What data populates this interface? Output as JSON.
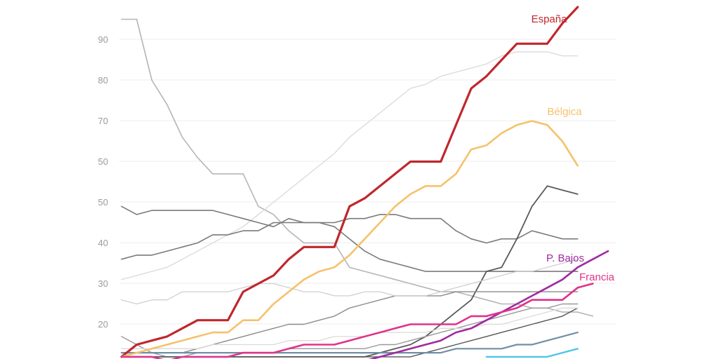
{
  "chart_data": {
    "type": "line",
    "title": "",
    "xlabel": "",
    "ylabel": "",
    "ylim": [
      12,
      99
    ],
    "y_ticks": [
      "20",
      "30",
      "40",
      "50",
      "70",
      "80",
      "90"
    ],
    "grid": true,
    "x_count": 33,
    "series": [
      {
        "name": "España",
        "color": "#c0272d",
        "width": 3.2,
        "labeled": true,
        "values": [
          12,
          15,
          16,
          17,
          19,
          21,
          21,
          21,
          28,
          30,
          32,
          36,
          39,
          39,
          39,
          49,
          51,
          54,
          57,
          60,
          60,
          60,
          69,
          78,
          81,
          85,
          89,
          89,
          89,
          94,
          98
        ]
      },
      {
        "name": "Bélgica",
        "color": "#f5c26b",
        "width": 2.6,
        "labeled": true,
        "values": [
          12,
          13,
          14,
          15,
          16,
          17,
          18,
          18,
          21,
          21,
          25,
          28,
          31,
          33,
          34,
          37,
          41,
          45,
          49,
          52,
          54,
          54,
          57,
          63,
          64,
          67,
          69,
          70,
          69,
          65,
          59
        ]
      },
      {
        "name": "P. Bajos",
        "color": "#a02aa0",
        "width": 2.6,
        "labeled": true,
        "values": [
          null,
          null,
          null,
          null,
          null,
          null,
          null,
          null,
          null,
          null,
          null,
          null,
          null,
          null,
          null,
          null,
          11,
          12,
          13,
          14,
          15,
          16,
          18,
          19,
          21,
          23,
          25,
          27,
          29,
          31,
          34,
          36,
          38
        ]
      },
      {
        "name": "Francia",
        "color": "#e0338a",
        "width": 2.6,
        "labeled": true,
        "values": [
          12,
          12,
          12,
          11,
          12,
          12,
          12,
          12,
          13,
          13,
          13,
          14,
          15,
          15,
          15,
          16,
          17,
          18,
          19,
          20,
          20,
          20,
          20,
          22,
          22,
          23,
          24,
          26,
          26,
          26,
          29,
          30
        ]
      },
      {
        "name": "",
        "color": "#b5b5b5",
        "width": 1.6,
        "labeled": false,
        "values": [
          95,
          95,
          80,
          74,
          66,
          61,
          57,
          57,
          57,
          49,
          47,
          43,
          40,
          40,
          40,
          34,
          33,
          32,
          31,
          30,
          29,
          28,
          28,
          27,
          26,
          25,
          25,
          24,
          24,
          23,
          23,
          22
        ]
      },
      {
        "name": "",
        "color": "#dcdcdc",
        "width": 1.4,
        "labeled": false,
        "values": [
          31,
          32,
          33,
          34,
          36,
          38,
          40,
          42,
          44,
          47,
          50,
          53,
          56,
          59,
          62,
          66,
          69,
          72,
          75,
          78,
          79,
          81,
          82,
          83,
          84,
          86,
          87,
          87,
          87,
          86,
          86
        ]
      },
      {
        "name": "",
        "color": "#7a7a7a",
        "width": 1.6,
        "labeled": false,
        "values": [
          49,
          47,
          48,
          48,
          48,
          48,
          48,
          47,
          46,
          45,
          44,
          46,
          45,
          45,
          45,
          46,
          46,
          47,
          47,
          46,
          46,
          46,
          43,
          41,
          40,
          41,
          41,
          43,
          42,
          41,
          41
        ]
      },
      {
        "name": "",
        "color": "#7a7a7a",
        "width": 1.6,
        "labeled": false,
        "values": [
          36,
          37,
          37,
          38,
          39,
          40,
          42,
          42,
          43,
          43,
          45,
          45,
          45,
          45,
          44,
          41,
          38,
          36,
          35,
          34,
          33,
          33,
          33,
          33,
          33,
          33,
          33,
          33,
          33,
          33,
          33
        ]
      },
      {
        "name": "",
        "color": "#5a5a5a",
        "width": 1.8,
        "labeled": false,
        "values": [
          12,
          12,
          12,
          12,
          12,
          12,
          12,
          12,
          12,
          12,
          12,
          12,
          12,
          12,
          12,
          12,
          12,
          13,
          14,
          15,
          17,
          20,
          23,
          26,
          33,
          34,
          41,
          49,
          54,
          53,
          52
        ]
      },
      {
        "name": "",
        "color": "#8a8a8a",
        "width": 1.4,
        "labeled": false,
        "values": [
          13,
          13,
          13,
          13,
          13,
          14,
          15,
          16,
          17,
          18,
          19,
          20,
          20,
          21,
          22,
          24,
          25,
          26,
          27,
          27,
          27,
          27,
          28,
          28,
          28,
          28,
          28,
          28,
          28,
          28,
          28
        ]
      },
      {
        "name": "",
        "color": "#cfcfcf",
        "width": 1.3,
        "labeled": false,
        "values": [
          26,
          25,
          26,
          26,
          28,
          28,
          28,
          28,
          29,
          30,
          30,
          29,
          28,
          28,
          27,
          27,
          28,
          28,
          27,
          27,
          27,
          28,
          29,
          30,
          31,
          32,
          33,
          33,
          34,
          35,
          36
        ]
      },
      {
        "name": "",
        "color": "#999999",
        "width": 1.4,
        "labeled": false,
        "values": [
          17,
          15,
          13,
          12,
          12,
          13,
          13,
          13,
          13,
          13,
          13,
          14,
          14,
          14,
          14,
          14,
          14,
          15,
          15,
          16,
          17,
          18,
          19,
          20,
          21,
          22,
          23,
          24,
          24,
          25,
          25
        ]
      },
      {
        "name": "",
        "color": "#555555",
        "width": 1.4,
        "labeled": false,
        "values": [
          12,
          12,
          12,
          12,
          12,
          12,
          12,
          12,
          12,
          12,
          12,
          12,
          12,
          12,
          12,
          12,
          12,
          12,
          12,
          12,
          13,
          14,
          15,
          16,
          17,
          18,
          19,
          20,
          21,
          22,
          24
        ]
      },
      {
        "name": "",
        "color": "#dadada",
        "width": 1.3,
        "labeled": false,
        "values": [
          14,
          14,
          14,
          14,
          14,
          14,
          15,
          15,
          15,
          15,
          15,
          16,
          16,
          16,
          17,
          17,
          17,
          18,
          18,
          18,
          18,
          19,
          19,
          19,
          20,
          20,
          21,
          22,
          23,
          24,
          24
        ]
      },
      {
        "name": "",
        "color": "#6f8fa6",
        "width": 2.2,
        "labeled": false,
        "values": [
          13,
          13,
          13,
          13,
          13,
          13,
          13,
          13,
          13,
          13,
          13,
          13,
          13,
          13,
          13,
          13,
          13,
          13,
          13,
          13,
          13,
          13,
          14,
          14,
          14,
          14,
          15,
          15,
          16,
          17,
          18
        ]
      },
      {
        "name": "",
        "color": "#4fc4e8",
        "width": 2.4,
        "labeled": false,
        "values": [
          null,
          null,
          null,
          null,
          null,
          null,
          null,
          null,
          null,
          null,
          null,
          null,
          null,
          null,
          null,
          null,
          null,
          null,
          null,
          null,
          null,
          null,
          null,
          null,
          12,
          12,
          12,
          12,
          12,
          13,
          14
        ]
      }
    ]
  }
}
